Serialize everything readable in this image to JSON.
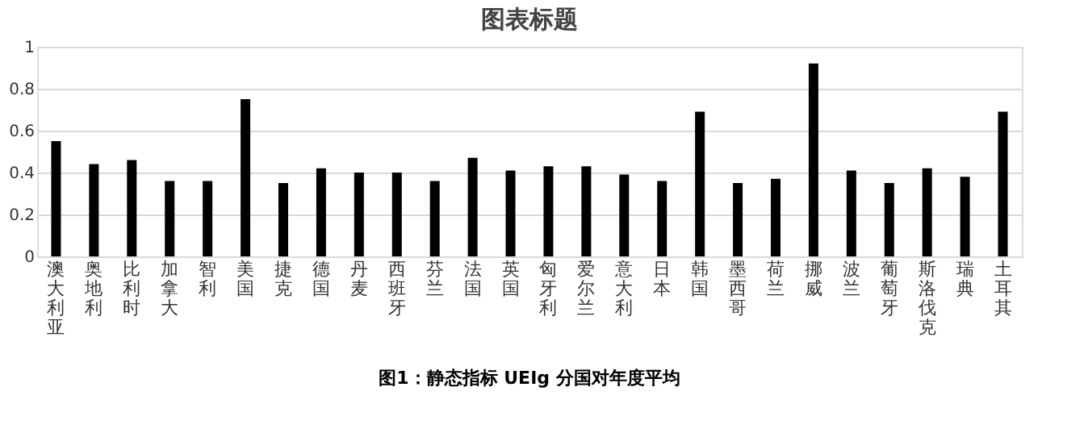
{
  "chart_data": {
    "type": "bar",
    "title": "图表标题",
    "categories": [
      "澳大利亚",
      "奥地利",
      "比利时",
      "加拿大",
      "智利",
      "美国",
      "捷克",
      "德国",
      "丹麦",
      "西班牙",
      "芬兰",
      "法国",
      "英国",
      "匈牙利",
      "爱尔兰",
      "意大利",
      "日本",
      "韩国",
      "墨西哥",
      "荷兰",
      "挪威",
      "波兰",
      "葡萄牙",
      "斯洛伐克",
      "瑞典",
      "土耳其"
    ],
    "values": [
      0.55,
      0.44,
      0.46,
      0.36,
      0.36,
      0.75,
      0.35,
      0.42,
      0.4,
      0.4,
      0.36,
      0.47,
      0.41,
      0.43,
      0.43,
      0.39,
      0.36,
      0.69,
      0.35,
      0.37,
      0.92,
      0.41,
      0.35,
      0.42,
      0.38,
      0.69
    ],
    "color": "#000000",
    "ylim": [
      0,
      1
    ],
    "yticks": [
      0,
      0.2,
      0.4,
      0.6,
      0.8,
      1
    ],
    "grid": "y",
    "annotations": [
      "图1：静态指标 UEIg 分国对年度平均"
    ]
  }
}
